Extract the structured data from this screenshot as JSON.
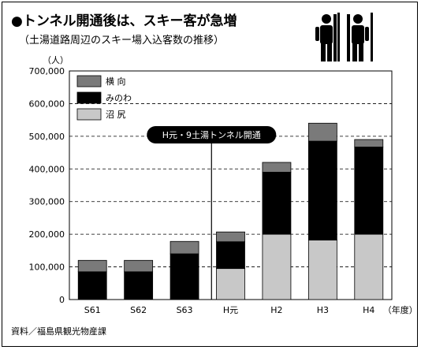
{
  "header": {
    "title": "●トンネル開通後は、スキー客が急増",
    "subtitle": "（土湯道路周辺のスキー場入込客数の推移）",
    "unit": "（人）"
  },
  "source": "資料／福島県観光物産課",
  "icon": "skier-pictogram-icon",
  "chart_data": {
    "type": "bar",
    "stacked": true,
    "categories": [
      "S61",
      "S62",
      "S63",
      "H元",
      "H2",
      "H3",
      "H4"
    ],
    "x_unit_label": "（年度）",
    "series": [
      {
        "name": "沼 尻",
        "color": "#c8c8c8",
        "values": [
          0,
          0,
          0,
          95000,
          200000,
          182000,
          200000
        ]
      },
      {
        "name": "みのわ",
        "color": "#000000",
        "values": [
          85000,
          85000,
          140000,
          82000,
          190000,
          303000,
          267000
        ]
      },
      {
        "name": "横 向",
        "color": "#7a7a7a",
        "values": [
          35000,
          35000,
          38000,
          30000,
          30000,
          55000,
          23000
        ]
      }
    ],
    "ylim": [
      0,
      700000
    ],
    "yticks": [
      "0",
      "100,000",
      "200,000",
      "300,000",
      "400,000",
      "500,000",
      "600,000",
      "700,000"
    ],
    "grid": "dashed",
    "legend": "top-left",
    "annotation": {
      "text": "H元・9土湯トンネル開通",
      "category": "H元"
    }
  }
}
